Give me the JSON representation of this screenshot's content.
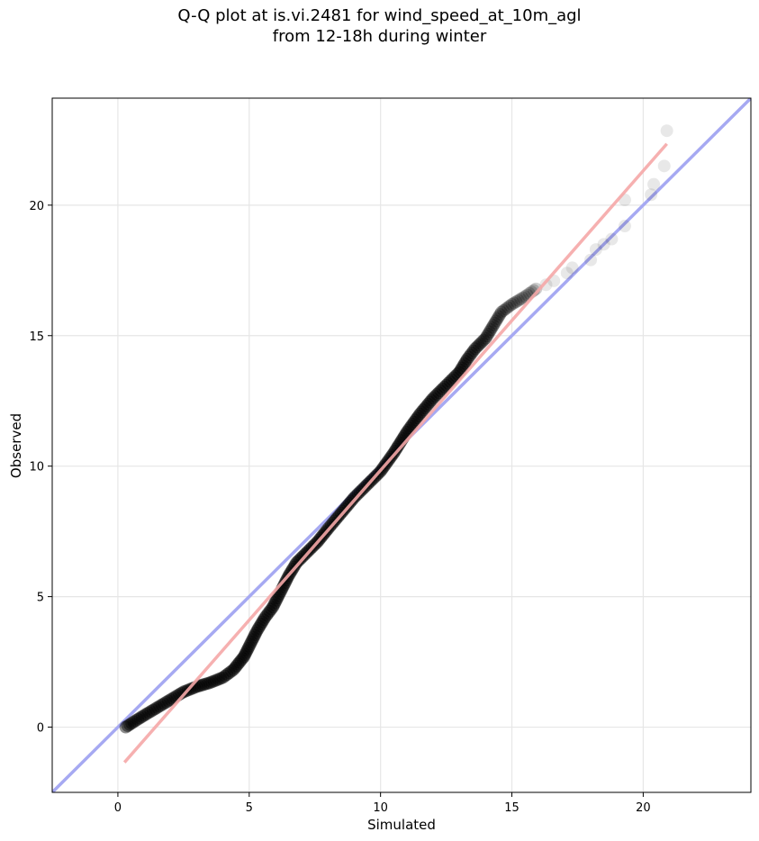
{
  "chart_data": {
    "type": "scatter",
    "title_line1": "Q-Q plot at is.vi.2481 for wind_speed_at_10m_agl",
    "title_line2": "from 12-18h during winter",
    "xlabel": "Simulated",
    "ylabel": "Observed",
    "xlim": [
      -2.5,
      24.1
    ],
    "ylim": [
      -2.5,
      24.1
    ],
    "xticks": [
      0,
      5,
      10,
      15,
      20
    ],
    "yticks": [
      0,
      5,
      10,
      15,
      20
    ],
    "grid": true,
    "colors": {
      "points": "#000000",
      "identity_line": "#a6a9f2",
      "fit_line": "#f5a7a7",
      "grid": "#e6e6e6"
    },
    "identity_line": {
      "x": [
        -2.5,
        24.1
      ],
      "y": [
        -2.5,
        24.1
      ]
    },
    "fit_line": {
      "x": [
        0.25,
        20.9
      ],
      "y": [
        -1.35,
        22.35
      ]
    },
    "qq_curve": {
      "x": [
        0.3,
        0.6,
        1.0,
        1.5,
        2.0,
        2.5,
        3.0,
        3.5,
        4.0,
        4.4,
        4.8,
        5.0,
        5.3,
        5.6,
        5.9,
        6.2,
        6.5,
        6.8,
        7.2,
        7.6,
        8.0,
        8.5,
        9.0,
        9.5,
        10.0,
        10.5,
        11.0,
        11.5,
        12.0,
        12.5,
        13.0,
        13.3,
        13.6,
        14.0,
        14.3,
        14.6,
        15.0,
        15.5,
        16.0
      ],
      "y": [
        0.0,
        0.2,
        0.45,
        0.75,
        1.05,
        1.35,
        1.55,
        1.7,
        1.9,
        2.2,
        2.7,
        3.1,
        3.7,
        4.2,
        4.6,
        5.2,
        5.8,
        6.3,
        6.7,
        7.1,
        7.6,
        8.2,
        8.8,
        9.3,
        9.8,
        10.5,
        11.3,
        12.0,
        12.6,
        13.1,
        13.6,
        14.1,
        14.5,
        14.9,
        15.4,
        15.9,
        16.2,
        16.5,
        16.85
      ]
    },
    "tail_points": {
      "x": [
        16.3,
        16.6,
        17.1,
        17.3,
        18.0,
        18.2,
        18.5,
        18.8,
        19.3,
        19.3,
        20.3,
        20.4,
        20.8,
        20.9
      ],
      "y": [
        16.95,
        17.1,
        17.4,
        17.6,
        17.9,
        18.3,
        18.5,
        18.7,
        19.2,
        20.2,
        20.4,
        20.8,
        21.5,
        22.85
      ]
    }
  }
}
